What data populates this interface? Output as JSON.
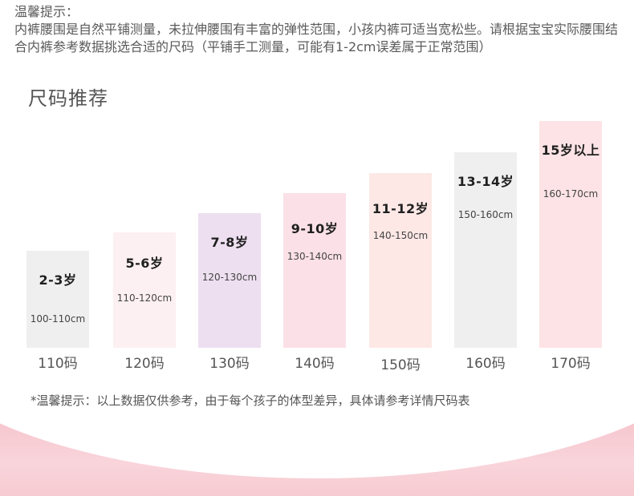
{
  "notice": {
    "heading": "温馨提示：",
    "lines": [
      "内裤腰围是自然平铺测量，未拉伸腰围有丰富的弹性范围，小孩内裤可适当宽松些。请根据宝宝实际腰围结",
      "合内裤参考数据挑选合适的尺码（平铺手工测量，可能有1-2cm误差属于正常范围）"
    ]
  },
  "section_title": "尺码推荐",
  "sizes": [
    {
      "age": "2-3岁",
      "range": "100-110cm",
      "size": "110码",
      "color": "#efefef"
    },
    {
      "age": "5-6岁",
      "range": "110-120cm",
      "size": "120码",
      "color": "#fdf0f2"
    },
    {
      "age": "7-8岁",
      "range": "120-130cm",
      "size": "130码",
      "color": "#eddff0"
    },
    {
      "age": "9-10岁",
      "range": "130-140cm",
      "size": "140码",
      "color": "#fbe0e7"
    },
    {
      "age": "11-12岁",
      "range": "140-150cm",
      "size": "150码",
      "color": "#fde8e6"
    },
    {
      "age": "13-14岁",
      "range": "150-160cm",
      "size": "160码",
      "color": "#efefef"
    },
    {
      "age": "15岁以上",
      "range": "160-170cm",
      "size": "170码",
      "color": "#fde3e5"
    }
  ],
  "footnote": "*温馨提示：以上数据仅供参考，由于每个孩子的体型差异，具体请参考详情尺码表",
  "colors": {
    "text": "#555555",
    "wave_pink": "#f6c3cc"
  }
}
